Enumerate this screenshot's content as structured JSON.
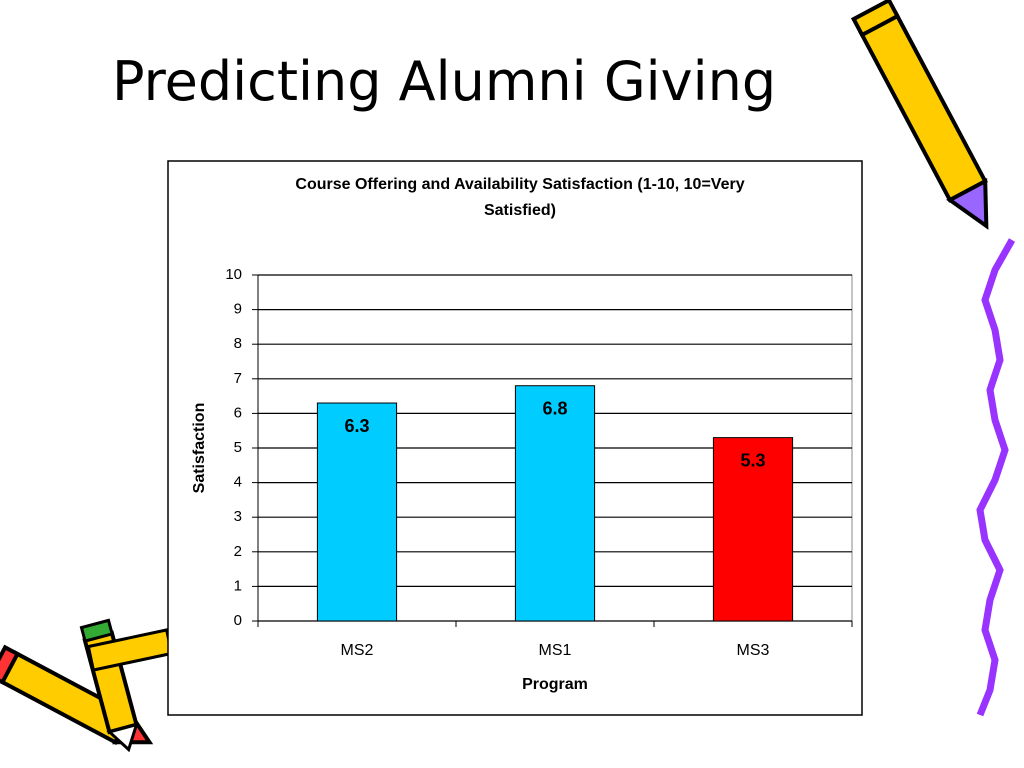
{
  "slide_title": "Predicting Alumni Giving",
  "chart_data": {
    "type": "bar",
    "title": "Course Offering and  Availability Satisfaction (1-10, 10=Very Satisfied)",
    "x_label": "Program",
    "y_label": "Satisfaction",
    "categories": [
      "MS2",
      "MS1",
      "MS3"
    ],
    "values": [
      6.3,
      6.8,
      5.3
    ],
    "colors": [
      "#00ccff",
      "#00ccff",
      "#ff0000"
    ],
    "ylim": [
      0,
      10
    ],
    "yticks": [
      0,
      1,
      2,
      3,
      4,
      5,
      6,
      7,
      8,
      9,
      10
    ],
    "grid": true
  }
}
